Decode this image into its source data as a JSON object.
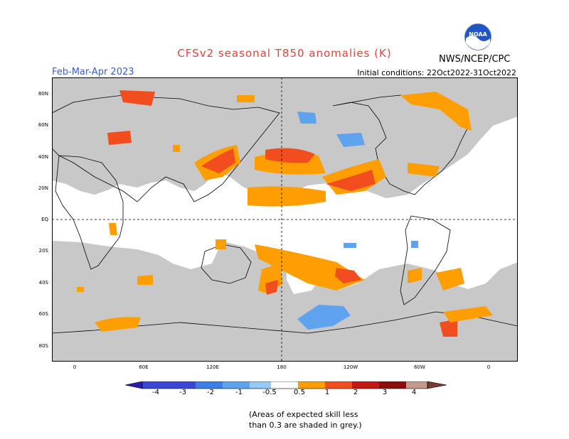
{
  "header": {
    "title": "CFSv2 seasonal T850 anomalies (K)",
    "season": "Feb-Mar-Apr 2023",
    "initial_conditions": "Initial conditions: 22Oct2022-31Oct2022",
    "agency": "NWS/NCEP/CPC",
    "logo_text": "NOAA"
  },
  "axes": {
    "latitude_labels": [
      "80N",
      "60N",
      "40N",
      "20N",
      "EQ",
      "20S",
      "40S",
      "60S",
      "80S"
    ],
    "longitude_labels": [
      "0",
      "60E",
      "120E",
      "180",
      "120W",
      "60W",
      "0"
    ]
  },
  "legend": {
    "labels": [
      "-4",
      "-3",
      "-2",
      "-1",
      "-0.5",
      "0.5",
      "1",
      "2",
      "3",
      "4"
    ],
    "colors": [
      "#2a1bb0",
      "#3b45d8",
      "#3d7ee6",
      "#5fa3ee",
      "#96c9f4",
      "#ffffff",
      "#ff9e00",
      "#f24d1e",
      "#c41612",
      "#8c0d0d",
      "#c49a8c",
      "#7a3b2e"
    ]
  },
  "footnote": {
    "line1": "(Areas of expected skill less",
    "line2": "than 0.3 are shaded in grey.)"
  },
  "colors": {
    "skill_grey": "#c8c8c8",
    "warm_1": "#ff9e00",
    "warm_2": "#f24d1e",
    "warm_3": "#c41612",
    "cool_1": "#5fa3ee",
    "title_red": "#e8413c",
    "season_blue": "#3a5fcd"
  }
}
